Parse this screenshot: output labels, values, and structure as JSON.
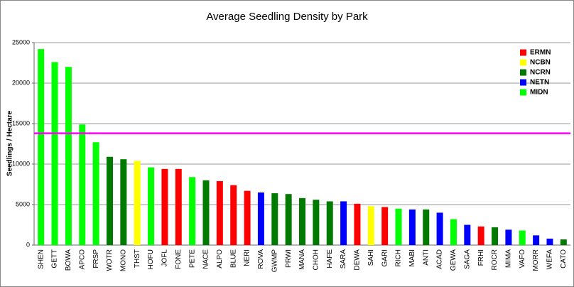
{
  "chart_data": {
    "type": "bar",
    "title": "Average Seedling Density by Park",
    "y_label": "Seedlings / Hectare",
    "categories": [
      "SHEN",
      "GETT",
      "BOWA",
      "APCO",
      "FRSP",
      "WOTR",
      "MONO",
      "THST",
      "HOFU",
      "JOFL",
      "FONE",
      "PETE",
      "NACE",
      "ALPO",
      "BLUE",
      "NERI",
      "ROVA",
      "GWMP",
      "PRWI",
      "MANA",
      "CHOH",
      "HAFE",
      "SARA",
      "DEWA",
      "SAHI",
      "GARI",
      "RICH",
      "MABI",
      "ANTI",
      "ACAD",
      "GEWA",
      "SAGA",
      "FRHI",
      "ROCR",
      "MIMA",
      "VAFO",
      "MORR",
      "WEFA",
      "CATO"
    ],
    "series": [
      {
        "name": "ERMN",
        "color": "#ff0000",
        "values": [
          null,
          null,
          null,
          null,
          null,
          null,
          null,
          null,
          null,
          9400,
          9400,
          null,
          null,
          7900,
          7400,
          6700,
          null,
          null,
          null,
          null,
          null,
          null,
          null,
          5100,
          null,
          4700,
          null,
          null,
          null,
          null,
          null,
          null,
          2300,
          null,
          null,
          null,
          null,
          null,
          null
        ]
      },
      {
        "name": "NCBN",
        "color": "#ffff00",
        "values": [
          null,
          null,
          null,
          null,
          null,
          null,
          null,
          10400,
          null,
          null,
          null,
          null,
          null,
          null,
          null,
          null,
          null,
          null,
          null,
          null,
          null,
          null,
          null,
          null,
          4800,
          null,
          null,
          null,
          null,
          null,
          null,
          null,
          null,
          null,
          null,
          null,
          null,
          null,
          null
        ]
      },
      {
        "name": "NCRN",
        "color": "#007a00",
        "values": [
          null,
          null,
          null,
          null,
          null,
          10900,
          10600,
          null,
          null,
          null,
          null,
          null,
          8000,
          null,
          null,
          null,
          null,
          6400,
          6300,
          5800,
          5600,
          5400,
          null,
          null,
          null,
          null,
          null,
          null,
          4400,
          null,
          null,
          null,
          null,
          2200,
          null,
          null,
          null,
          null,
          700
        ]
      },
      {
        "name": "NETN",
        "color": "#0000ff",
        "values": [
          null,
          null,
          null,
          null,
          null,
          null,
          null,
          null,
          null,
          null,
          null,
          null,
          null,
          null,
          null,
          null,
          6500,
          null,
          null,
          null,
          null,
          null,
          5400,
          null,
          null,
          null,
          null,
          4400,
          null,
          4000,
          null,
          2500,
          null,
          null,
          1900,
          null,
          1200,
          800,
          null
        ]
      },
      {
        "name": "MIDN",
        "color": "#00ff00",
        "values": [
          24200,
          22600,
          22000,
          14900,
          12700,
          null,
          null,
          null,
          9600,
          null,
          null,
          8400,
          null,
          null,
          null,
          null,
          null,
          null,
          null,
          null,
          null,
          null,
          null,
          null,
          null,
          null,
          4500,
          null,
          null,
          null,
          3200,
          null,
          null,
          null,
          null,
          1800,
          null,
          null,
          null
        ]
      }
    ],
    "reference_line": {
      "value": 13800,
      "color": "#ff00ff"
    },
    "ylim": [
      0,
      25000
    ],
    "yticks": [
      0,
      5000,
      10000,
      15000,
      20000,
      25000
    ],
    "grid": true,
    "legend": "top-right"
  }
}
